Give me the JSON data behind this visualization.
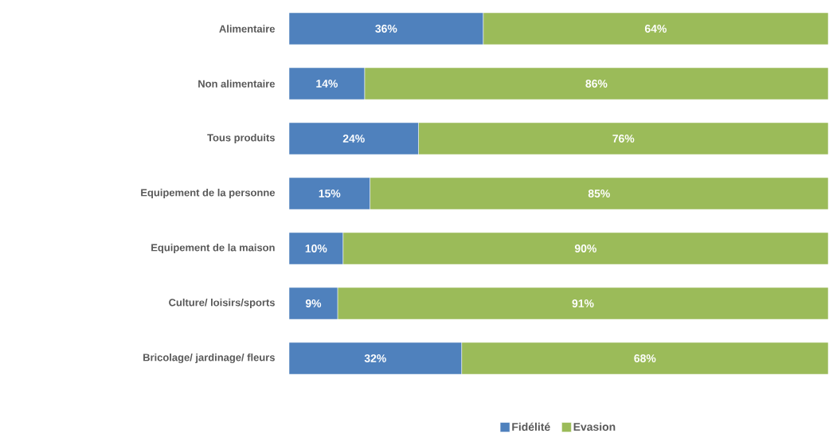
{
  "chart_data": {
    "type": "bar",
    "orientation": "horizontal",
    "stacked": true,
    "categories": [
      "Alimentaire",
      "Non alimentaire",
      "Tous produits",
      "Equipement de la personne",
      "Equipement de la maison",
      "Culture/ loisirs/sports",
      "Bricolage/ jardinage/ fleurs"
    ],
    "tick_labels": "y",
    "legend": "bottom",
    "series": [
      {
        "name": "Fidélité",
        "color": "#4f81bd",
        "values": [
          36,
          14,
          24,
          15,
          10,
          9,
          32
        ],
        "value_labels": [
          "36%",
          "14%",
          "24%",
          "15%",
          "10%",
          "9%",
          "32%"
        ]
      },
      {
        "name": "Evasion",
        "color": "#9bbb59",
        "values": [
          64,
          86,
          76,
          85,
          90,
          91,
          68
        ],
        "value_labels": [
          "64%",
          "86%",
          "76%",
          "85%",
          "90%",
          "91%",
          "68%"
        ]
      }
    ]
  }
}
